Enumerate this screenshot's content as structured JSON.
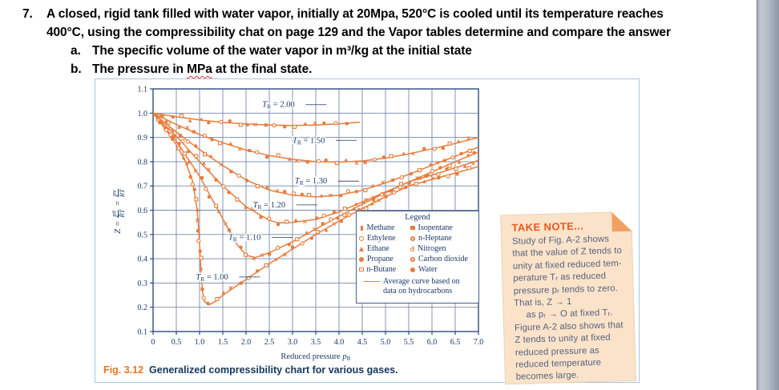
{
  "question": {
    "number": "7.",
    "line1": "A closed, rigid tank filled with water vapor, initially at 20Mpa, 520°C is cooled until its temperature reaches",
    "line2": "400°C, using the compressibility chat on page 129 and the Vapor tables determine and compare the answer",
    "item_a_label": "a.",
    "item_a": "The specific volume of the water vapor in m³/kg at the initial state",
    "item_b_label": "b.",
    "item_b_pre": "The pressure in ",
    "item_b_underlined": "MPa",
    "item_b_post": " at the final state."
  },
  "figure": {
    "caption_tag": "Fig. 3.12",
    "caption_text": "Generalized compressibility chart for various gases."
  },
  "note": {
    "title": "TAKE NOTE...",
    "lines": [
      "Study of Fig. A-2 shows",
      "that the value of Z tends to",
      "unity at fixed reduced tem-",
      "perature Tᵣ as reduced",
      "pressure pᵣ tends to zero.",
      "That is, Z → 1",
      "as pᵣ → O at fixed Tᵣ.",
      "Figure A-2 also shows that",
      "Z tends to unity at fixed",
      "reduced pressure as",
      "reduced temperature",
      "becomes large."
    ]
  },
  "chart_data": {
    "type": "line",
    "title": "",
    "xlabel_prefix": "Reduced pressure ",
    "xlabel_var": "p",
    "xlabel_sub": "R",
    "ylabel_parts": {
      "lead": "Z =",
      "num1": "pv̄",
      "den1": "R̄T",
      "eq": "=",
      "num2": "pv",
      "den2": "RT"
    },
    "xlim": [
      0,
      7
    ],
    "ylim": [
      0.1,
      1.1
    ],
    "grid": true,
    "legend_position": "lower-right",
    "x_ticks": [
      "0",
      "0.5",
      "1.0",
      "1.5",
      "2.0",
      "2.5",
      "3.0",
      "3.5",
      "4.0",
      "4.5",
      "5.0",
      "5.5",
      "6.0",
      "6.5",
      "7.0"
    ],
    "y_ticks": [
      "0.1",
      "0.2",
      "0.3",
      "0.4",
      "0.5",
      "0.6",
      "0.7",
      "0.8",
      "0.9",
      "1.0",
      "1.1"
    ],
    "colors": {
      "curve": "#e87c3a",
      "grid": "#7589ad",
      "axis": "#2d4d7c",
      "text": "#1d3a68"
    },
    "series": [
      {
        "name_prefix": "T",
        "name_sub": "R",
        "value": "2.00",
        "label_at": [
          2.35,
          1.025
        ],
        "points": [
          [
            0,
            1.0
          ],
          [
            0.5,
            0.985
          ],
          [
            1,
            0.972
          ],
          [
            1.5,
            0.962
          ],
          [
            2,
            0.955
          ],
          [
            2.5,
            0.951
          ],
          [
            3,
            0.949
          ],
          [
            3.5,
            0.951
          ],
          [
            4,
            0.956
          ],
          [
            4.45,
            0.963
          ]
        ]
      },
      {
        "name_prefix": "T",
        "name_sub": "R",
        "value": "1.50",
        "label_at": [
          3.0,
          0.878
        ],
        "points": [
          [
            0,
            1.0
          ],
          [
            0.5,
            0.953
          ],
          [
            1,
            0.912
          ],
          [
            1.5,
            0.878
          ],
          [
            2,
            0.848
          ],
          [
            2.5,
            0.825
          ],
          [
            3,
            0.81
          ],
          [
            3.5,
            0.8
          ],
          [
            4,
            0.798
          ],
          [
            4.5,
            0.803
          ],
          [
            5,
            0.815
          ],
          [
            5.5,
            0.832
          ],
          [
            6,
            0.853
          ],
          [
            6.5,
            0.875
          ],
          [
            7,
            0.9
          ]
        ]
      },
      {
        "name_prefix": "T",
        "name_sub": "R",
        "value": "1.30",
        "label_at": [
          3.05,
          0.71
        ],
        "points": [
          [
            0,
            1.0
          ],
          [
            0.5,
            0.922
          ],
          [
            1,
            0.85
          ],
          [
            1.5,
            0.784
          ],
          [
            2,
            0.725
          ],
          [
            2.5,
            0.683
          ],
          [
            3,
            0.662
          ],
          [
            3.5,
            0.655
          ],
          [
            4,
            0.662
          ],
          [
            4.5,
            0.682
          ],
          [
            5,
            0.713
          ],
          [
            5.5,
            0.748
          ],
          [
            6,
            0.785
          ],
          [
            6.5,
            0.822
          ],
          [
            7,
            0.86
          ]
        ]
      },
      {
        "name_prefix": "T",
        "name_sub": "R",
        "value": "1.20",
        "label_at": [
          2.15,
          0.612
        ],
        "points": [
          [
            0,
            1.0
          ],
          [
            0.5,
            0.905
          ],
          [
            1,
            0.8
          ],
          [
            1.5,
            0.7
          ],
          [
            2,
            0.615
          ],
          [
            2.5,
            0.558
          ],
          [
            2.7,
            0.548
          ],
          [
            3,
            0.55
          ],
          [
            3.5,
            0.562
          ],
          [
            4,
            0.593
          ],
          [
            4.5,
            0.634
          ],
          [
            5,
            0.675
          ],
          [
            5.5,
            0.716
          ],
          [
            6,
            0.758
          ],
          [
            6.5,
            0.8
          ],
          [
            7,
            0.84
          ]
        ]
      },
      {
        "name_prefix": "T",
        "name_sub": "R",
        "value": "1.10",
        "label_at": [
          1.62,
          0.478
        ],
        "points": [
          [
            0,
            1.0
          ],
          [
            0.5,
            0.885
          ],
          [
            1,
            0.74
          ],
          [
            1.5,
            0.565
          ],
          [
            1.8,
            0.46
          ],
          [
            2,
            0.415
          ],
          [
            2.2,
            0.405
          ],
          [
            2.5,
            0.425
          ],
          [
            3,
            0.47
          ],
          [
            3.5,
            0.522
          ],
          [
            4,
            0.575
          ],
          [
            4.5,
            0.625
          ],
          [
            5,
            0.672
          ],
          [
            5.5,
            0.717
          ],
          [
            6,
            0.745
          ],
          [
            6.5,
            0.775
          ],
          [
            7,
            0.805
          ]
        ]
      },
      {
        "name_prefix": "T",
        "name_sub": "R",
        "value": "1.00",
        "label_at": [
          0.92,
          0.315
        ],
        "points": [
          [
            0,
            1.0
          ],
          [
            0.3,
            0.925
          ],
          [
            0.5,
            0.87
          ],
          [
            0.7,
            0.8
          ],
          [
            0.85,
            0.72
          ],
          [
            0.95,
            0.6
          ],
          [
            1.0,
            0.46
          ],
          [
            1.03,
            0.35
          ],
          [
            1.06,
            0.27
          ],
          [
            1.1,
            0.225
          ],
          [
            1.2,
            0.21
          ],
          [
            1.35,
            0.225
          ],
          [
            1.5,
            0.25
          ],
          [
            2,
            0.315
          ],
          [
            2.5,
            0.38
          ],
          [
            3,
            0.44
          ],
          [
            3.5,
            0.5
          ],
          [
            4,
            0.555
          ],
          [
            4.5,
            0.607
          ],
          [
            5,
            0.655
          ],
          [
            5.5,
            0.7
          ],
          [
            6,
            0.727
          ],
          [
            6.5,
            0.753
          ],
          [
            7,
            0.78
          ]
        ]
      }
    ],
    "legend": {
      "title": "Legend",
      "items": [
        {
          "marker": "tick",
          "label": "Methane"
        },
        {
          "marker": "open-circle",
          "label": "Ethylene"
        },
        {
          "marker": "triangle",
          "label": "Ethane"
        },
        {
          "marker": "filled-circle",
          "label": "Propane"
        },
        {
          "marker": "open-square",
          "label": "n-Butane"
        },
        {
          "marker": "filled-square",
          "label": "Isopentane"
        },
        {
          "marker": "dot-circle",
          "label": "n-Heptane"
        },
        {
          "marker": "stem-circle",
          "label": "Nitrogen"
        },
        {
          "marker": "dot-circle",
          "label": "Carbon dioxide"
        },
        {
          "marker": "filled-circle",
          "label": "Water"
        }
      ],
      "avg_line_1": "Average curve based on",
      "avg_line_2": "data on hydrocarbons"
    }
  }
}
